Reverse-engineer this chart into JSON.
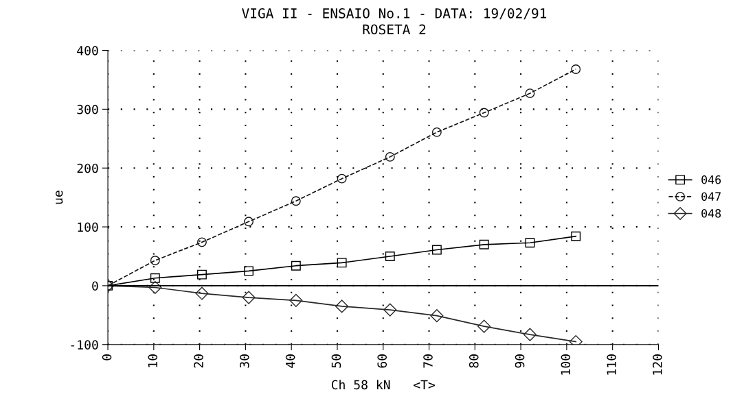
{
  "chart_data": {
    "type": "line",
    "title": "VIGA II - ENSAIO No.1 - DATA: 19/02/91",
    "subtitle": "ROSETA 2",
    "xlabel": "Ch 58 kN   <T>",
    "ylabel": "ue",
    "x": [
      0,
      10.3,
      20.5,
      30.7,
      41,
      51,
      61.5,
      71.7,
      82,
      92,
      102
    ],
    "series": [
      {
        "name": "046",
        "color": "#000000",
        "marker": "square",
        "line_style": "solid",
        "values": [
          0,
          13,
          19,
          25,
          34,
          39,
          50,
          61,
          70,
          73,
          84
        ]
      },
      {
        "name": "047",
        "color": "#141414",
        "marker": "circle",
        "line_style": "dashed",
        "values": [
          0,
          43,
          74,
          109,
          144,
          182,
          219,
          261,
          294,
          327,
          368
        ]
      },
      {
        "name": "048",
        "color": "#282828",
        "marker": "diamond",
        "line_style": "solid",
        "values": [
          0,
          -3,
          -13,
          -20,
          -25,
          -35,
          -41,
          -51,
          -69,
          -83,
          -95
        ]
      }
    ],
    "xlim": [
      0,
      120
    ],
    "xticks": [
      0,
      10,
      20,
      30,
      40,
      50,
      60,
      70,
      80,
      90,
      100,
      110,
      120
    ],
    "ylim": [
      -100,
      400
    ],
    "yticks": [
      -100,
      0,
      100,
      200,
      300,
      400
    ],
    "grid": true,
    "legend": "right",
    "ref_lines": [
      {
        "axis": "y",
        "value": 0,
        "color": "#000000",
        "line_style": "solid"
      }
    ]
  }
}
